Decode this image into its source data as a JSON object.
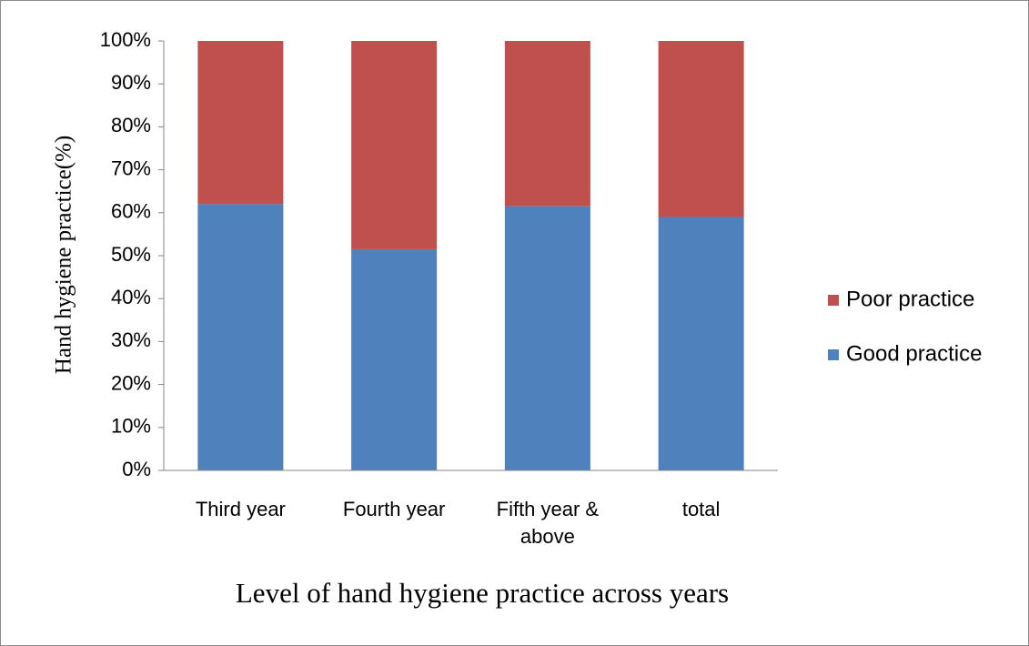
{
  "chart_data": {
    "type": "stacked_bar",
    "y_label": "Hand hygiene practice(%)",
    "x_label": "Level of hand hygiene practice across years",
    "categories": [
      "Third year",
      "Fourth year",
      "Fifth year & above",
      "total"
    ],
    "series": [
      {
        "name": "Good practice",
        "color": "#4f81bd",
        "values": [
          62,
          51.5,
          61.5,
          59
        ]
      },
      {
        "name": "Poor practice",
        "color": "#c0504d",
        "values": [
          38,
          48.5,
          38.5,
          41
        ]
      }
    ],
    "ylim": [
      0,
      100
    ],
    "yticks": [
      {
        "value": 0,
        "label": "0%"
      },
      {
        "value": 10,
        "label": "10%"
      },
      {
        "value": 20,
        "label": "20%"
      },
      {
        "value": 30,
        "label": "30%"
      },
      {
        "value": 40,
        "label": "40%"
      },
      {
        "value": 50,
        "label": "50%"
      },
      {
        "value": 60,
        "label": "60%"
      },
      {
        "value": 70,
        "label": "70%"
      },
      {
        "value": 80,
        "label": "80%"
      },
      {
        "value": 90,
        "label": "90%"
      },
      {
        "value": 100,
        "label": "100%"
      }
    ],
    "legend": "right"
  }
}
